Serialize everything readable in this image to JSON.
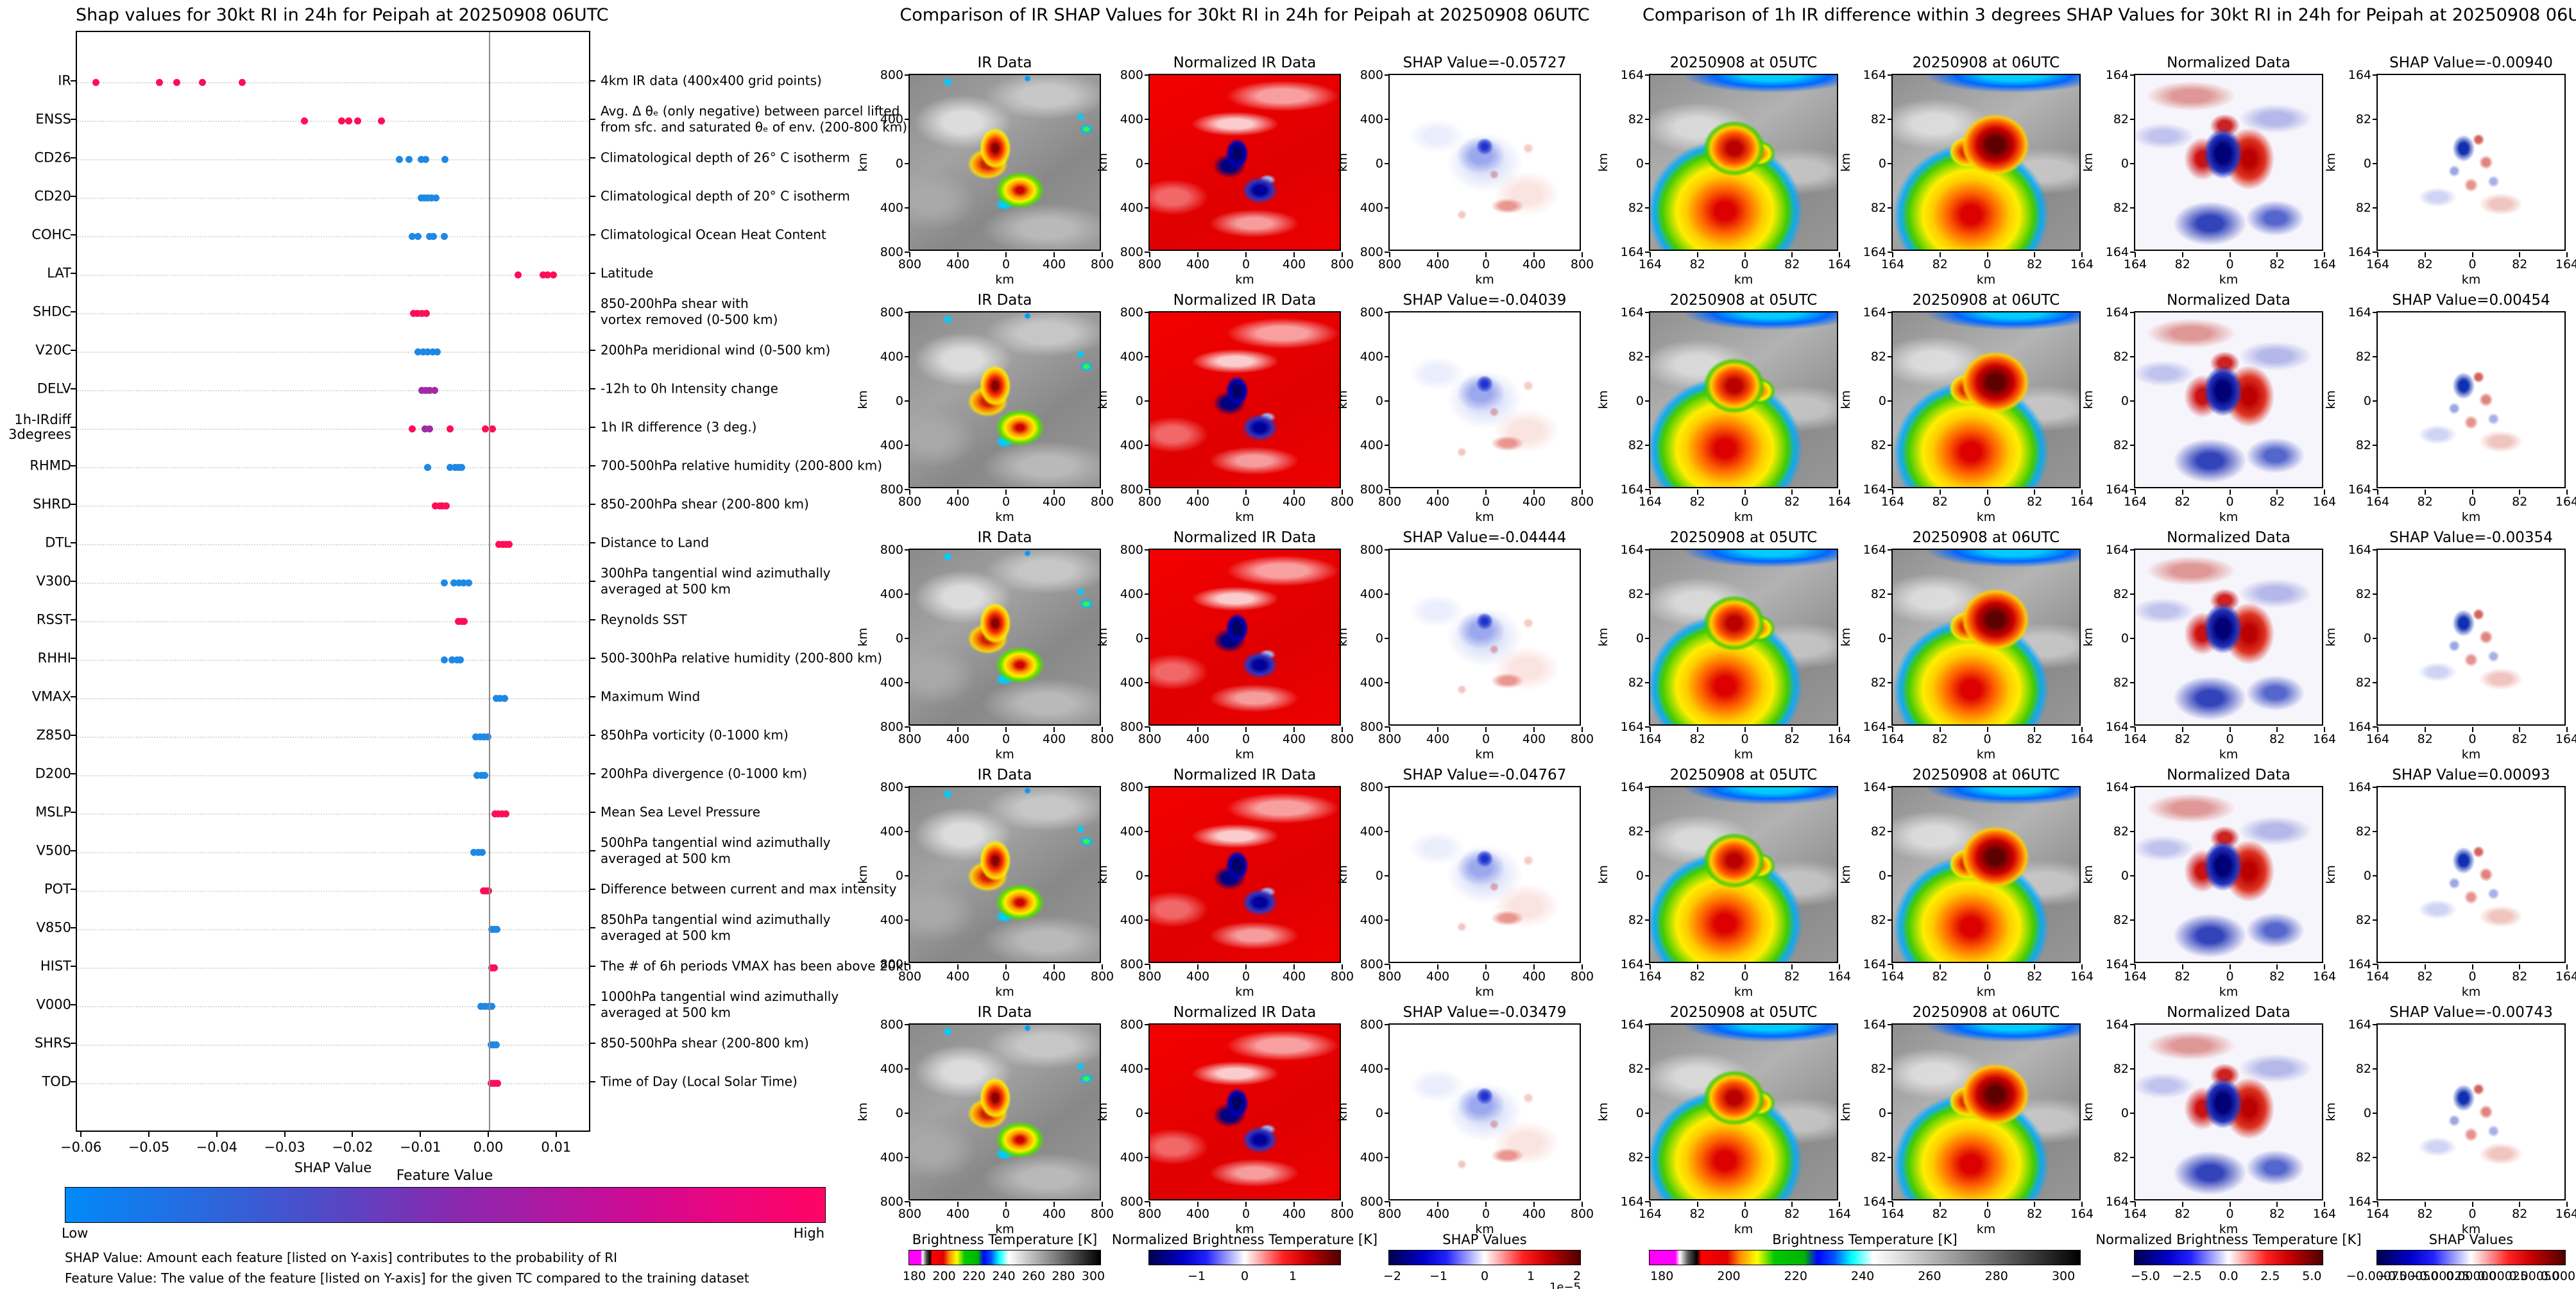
{
  "left_panel": {
    "title": "Shap values for 30kt RI in 24h for Peipah at 20250908 06UTC",
    "xlabel": "SHAP Value",
    "x_tick_labels": [
      "−0.06",
      "−0.05",
      "−0.04",
      "−0.03",
      "−0.02",
      "−0.01",
      "0.00",
      "0.01"
    ],
    "x_tick_values": [
      -0.06,
      -0.05,
      -0.04,
      -0.03,
      -0.02,
      -0.01,
      0.0,
      0.01
    ],
    "colors": {
      "hi": "#ff0d57",
      "lo": "#1e88e5",
      "mid": "#a12ba5"
    },
    "colorbar": {
      "title": "Feature Value",
      "low": "Low",
      "high": "High",
      "gradient_ends": [
        "#008af8",
        "#ff0463"
      ]
    },
    "footnote1": "SHAP Value: Amount each feature [listed on Y-axis] contributes to the probability of RI",
    "footnote2": "Feature Value: The value of the feature [listed on Y-axis] for the given TC compared to the training dataset",
    "features": [
      {
        "name": "IR",
        "desc": "4km IR data (400x400 grid points)",
        "c": "hi",
        "values": [
          -0.058,
          -0.0486,
          -0.0461,
          -0.0423,
          -0.0364
        ]
      },
      {
        "name": "ENSS",
        "desc": "Avg. Δ θₑ (only negative) between parcel lifted\nfrom sfc. and saturated θₑ of env. (200-800 km)",
        "c": "hi",
        "values": [
          -0.0273,
          -0.0218,
          -0.0207,
          -0.0194,
          -0.0159
        ]
      },
      {
        "name": "CD26",
        "desc": "Climatological depth of 26° C isotherm",
        "c": "lo",
        "values": [
          -0.0133,
          -0.0119,
          -0.0101,
          -0.0094,
          -0.0066
        ]
      },
      {
        "name": "CD20",
        "desc": "Climatological depth of 20° C isotherm",
        "c": "lo",
        "values": [
          -0.0101,
          -0.0096,
          -0.0091,
          -0.0086,
          -0.0079
        ]
      },
      {
        "name": "COHC",
        "desc": "Climatological Ocean Heat Content",
        "c": "lo",
        "values": [
          -0.0114,
          -0.0105,
          -0.0088,
          -0.0083,
          -0.0067
        ]
      },
      {
        "name": "LAT",
        "desc": "Latitude",
        "c": "hi",
        "values": [
          0.0042,
          0.0079,
          0.0086,
          0.0094
        ]
      },
      {
        "name": "SHDC",
        "desc": "850-200hPa shear with\nvortex removed (0-500 km)",
        "c": "hi",
        "values": [
          -0.0112,
          -0.0106,
          -0.01,
          -0.0093
        ]
      },
      {
        "name": "V20C",
        "desc": "200hPa meridional wind (0-500 km)",
        "c": "lo",
        "values": [
          -0.0105,
          -0.0098,
          -0.0091,
          -0.0084,
          -0.0077
        ]
      },
      {
        "name": "DELV",
        "desc": "-12h to 0h Intensity change",
        "c": "mid",
        "values": [
          -0.01,
          -0.0094,
          -0.0088,
          -0.0081
        ]
      },
      {
        "name": "1h-IRdiff\n3degrees",
        "desc": "1h IR difference (3 deg.)",
        "c": "hi",
        "values": [
          -0.0114,
          -0.0095,
          -0.0088,
          -0.0058,
          -0.0006,
          0.0004
        ],
        "pc": [
          "hi",
          "mid",
          "mid",
          "hi",
          "hi",
          "hi"
        ]
      },
      {
        "name": "RHMD",
        "desc": "700-500hPa relative humidity (200-800 km)",
        "c": "lo",
        "values": [
          -0.0091,
          -0.0058,
          -0.0051,
          -0.0046,
          -0.0041
        ]
      },
      {
        "name": "SHRD",
        "desc": "850-200hPa shear (200-800 km)",
        "c": "hi",
        "values": [
          -0.008,
          -0.0073,
          -0.0069,
          -0.0064
        ]
      },
      {
        "name": "DTL",
        "desc": "Distance to Land",
        "c": "hi",
        "values": [
          0.0014,
          0.0019,
          0.0024,
          0.0029
        ]
      },
      {
        "name": "V300",
        "desc": "300hPa tangential wind azimuthally\naveraged at 500 km",
        "c": "lo",
        "values": [
          -0.0067,
          -0.0052,
          -0.0045,
          -0.0038,
          -0.0031
        ]
      },
      {
        "name": "RSST",
        "desc": "Reynolds SST",
        "c": "hi",
        "values": [
          -0.0046,
          -0.0041,
          -0.0037
        ]
      },
      {
        "name": "RHHI",
        "desc": "500-300hPa relative humidity (200-800 km)",
        "c": "lo",
        "values": [
          -0.0067,
          -0.0055,
          -0.0048,
          -0.0043
        ]
      },
      {
        "name": "VMAX",
        "desc": "Maximum Wind",
        "c": "lo",
        "values": [
          0.001,
          0.0016,
          0.0022
        ]
      },
      {
        "name": "Z850",
        "desc": "850hPa vorticity (0-1000 km)",
        "c": "lo",
        "values": [
          -0.002,
          -0.0014,
          -0.0008,
          -0.0002
        ]
      },
      {
        "name": "D200",
        "desc": "200hPa divergence (0-1000 km)",
        "c": "lo",
        "values": [
          -0.0018,
          -0.0012,
          -0.0007
        ]
      },
      {
        "name": "MSLP",
        "desc": "Mean Sea Level Pressure",
        "c": "hi",
        "values": [
          0.0008,
          0.0013,
          0.0018,
          0.0024
        ]
      },
      {
        "name": "V500",
        "desc": "500hPa tangential wind azimuthally\naveraged at 500 km",
        "c": "lo",
        "values": [
          -0.0023,
          -0.0017,
          -0.0011
        ]
      },
      {
        "name": "POT",
        "desc": "Difference between current and max intensity",
        "c": "hi",
        "values": [
          -0.0009,
          -0.0005,
          -0.0001
        ]
      },
      {
        "name": "V850",
        "desc": "850hPa tangential wind azimuthally\naveraged at 500 km",
        "c": "lo",
        "values": [
          0.0003,
          0.0007,
          0.0011
        ]
      },
      {
        "name": "HIST",
        "desc": "The # of 6h periods VMAX has been above 20kt",
        "c": "hi",
        "values": [
          0.0003,
          0.0007
        ]
      },
      {
        "name": "V000",
        "desc": "1000hPa tangential wind azimuthally\naveraged at 500 km",
        "c": "lo",
        "values": [
          -0.0013,
          -0.0007,
          -0.0001,
          0.0003
        ]
      },
      {
        "name": "SHRS",
        "desc": "850-500hPa shear (200-800 km)",
        "c": "lo",
        "values": [
          0.0002,
          0.0006,
          0.001
        ]
      },
      {
        "name": "TOD",
        "desc": "Time of Day (Local Solar Time)",
        "c": "hi",
        "values": [
          0.0002,
          0.0007,
          0.0012
        ]
      }
    ]
  },
  "middle_panel": {
    "title": "Comparison of IR SHAP Values for 30kt RI in 24h for Peipah at 20250908 06UTC",
    "col_titles": [
      "IR Data",
      "Normalized IR Data"
    ],
    "rows": [
      {
        "shap_title": "SHAP Value=-0.05727"
      },
      {
        "shap_title": "SHAP Value=-0.04039"
      },
      {
        "shap_title": "SHAP Value=-0.04444"
      },
      {
        "shap_title": "SHAP Value=-0.04767"
      },
      {
        "shap_title": "SHAP Value=-0.03479"
      }
    ],
    "y_ticks": [
      "800",
      "400",
      "0",
      "400",
      "800"
    ],
    "x_ticks": [
      "800",
      "400",
      "0",
      "400",
      "800"
    ],
    "axis_unit": "km",
    "colorbars": [
      {
        "title": "Brightness Temperature [K]",
        "ticks": [
          "180",
          "200",
          "220",
          "240",
          "260",
          "280",
          "300"
        ]
      },
      {
        "title": "Normalized Brightness Temperature [K]",
        "ticks": [
          "−1",
          "0",
          "1"
        ]
      },
      {
        "title": "SHAP Values",
        "ticks": [
          "−2",
          "−1",
          "0",
          "1",
          "2"
        ],
        "exponent": "1e−5"
      }
    ]
  },
  "right_panel": {
    "title": "Comparison of 1h IR difference within 3 degrees SHAP Values for 30kt RI in 24h for Peipah at 20250908 06UTC",
    "col_titles": [
      "20250908 at 05UTC",
      "20250908 at 06UTC",
      "Normalized Data"
    ],
    "rows": [
      {
        "shap_title": "SHAP Value=-0.00940"
      },
      {
        "shap_title": "SHAP Value=0.00454"
      },
      {
        "shap_title": "SHAP Value=-0.00354"
      },
      {
        "shap_title": "SHAP Value=0.00093"
      },
      {
        "shap_title": "SHAP Value=-0.00743"
      }
    ],
    "y_ticks": [
      "164",
      "82",
      "0",
      "82",
      "164"
    ],
    "x_ticks": [
      "164",
      "82",
      "0",
      "82",
      "164"
    ],
    "axis_unit": "km",
    "colorbars": [
      {
        "title": "Brightness Temperature [K]",
        "ticks": [
          "180",
          "200",
          "220",
          "240",
          "260",
          "280",
          "300"
        ]
      },
      {
        "title": "Normalized Brightness Temperature [K]",
        "ticks": [
          "−5.0",
          "−2.5",
          "0.0",
          "2.5",
          "5.0"
        ]
      },
      {
        "title": "SHAP Values",
        "ticks": [
          "−0.00075",
          "−0.00050",
          "−0.00025",
          "0.00000",
          "0.00025",
          "0.00050",
          "0.00075"
        ]
      }
    ]
  },
  "chart_data": [
    {
      "type": "scatter",
      "title": "Shap values for 30kt RI in 24h for Peipah at 20250908 06UTC",
      "xlabel": "SHAP Value",
      "xlim": [
        -0.0608,
        0.015
      ],
      "x_ticks": [
        -0.06,
        -0.05,
        -0.04,
        -0.03,
        -0.02,
        -0.01,
        0.0,
        0.01
      ],
      "grid": "horizontal-dotted",
      "color_legend": {
        "title": "Feature Value",
        "low": "Low",
        "high": "High",
        "low_color": "#008af8",
        "high_color": "#ff0463"
      },
      "series": [
        {
          "name": "IR",
          "values": [
            -0.058,
            -0.0486,
            -0.0461,
            -0.0423,
            -0.0364
          ],
          "feature_value": "high"
        },
        {
          "name": "ENSS",
          "values": [
            -0.0273,
            -0.0218,
            -0.0207,
            -0.0194,
            -0.0159
          ],
          "feature_value": "high"
        },
        {
          "name": "CD26",
          "values": [
            -0.0133,
            -0.0119,
            -0.0101,
            -0.0094,
            -0.0066
          ],
          "feature_value": "low"
        },
        {
          "name": "CD20",
          "values": [
            -0.0101,
            -0.0096,
            -0.0091,
            -0.0086,
            -0.0079
          ],
          "feature_value": "low"
        },
        {
          "name": "COHC",
          "values": [
            -0.0114,
            -0.0105,
            -0.0088,
            -0.0083,
            -0.0067
          ],
          "feature_value": "low"
        },
        {
          "name": "LAT",
          "values": [
            0.0042,
            0.0079,
            0.0086,
            0.0094
          ],
          "feature_value": "high"
        },
        {
          "name": "SHDC",
          "values": [
            -0.0112,
            -0.0106,
            -0.01,
            -0.0093
          ],
          "feature_value": "high"
        },
        {
          "name": "V20C",
          "values": [
            -0.0105,
            -0.0098,
            -0.0091,
            -0.0084,
            -0.0077
          ],
          "feature_value": "low"
        },
        {
          "name": "DELV",
          "values": [
            -0.01,
            -0.0094,
            -0.0088,
            -0.0081
          ],
          "feature_value": "mid"
        },
        {
          "name": "1h-IRdiff 3degrees",
          "values": [
            -0.0114,
            -0.0095,
            -0.0088,
            -0.0058,
            -0.0006,
            0.0004
          ],
          "feature_value": "mixed"
        },
        {
          "name": "RHMD",
          "values": [
            -0.0091,
            -0.0058,
            -0.0051,
            -0.0046,
            -0.0041
          ],
          "feature_value": "low"
        },
        {
          "name": "SHRD",
          "values": [
            -0.008,
            -0.0073,
            -0.0069,
            -0.0064
          ],
          "feature_value": "high"
        },
        {
          "name": "DTL",
          "values": [
            0.0014,
            0.0019,
            0.0024,
            0.0029
          ],
          "feature_value": "high"
        },
        {
          "name": "V300",
          "values": [
            -0.0067,
            -0.0052,
            -0.0045,
            -0.0038,
            -0.0031
          ],
          "feature_value": "low"
        },
        {
          "name": "RSST",
          "values": [
            -0.0046,
            -0.0041,
            -0.0037
          ],
          "feature_value": "high"
        },
        {
          "name": "RHHI",
          "values": [
            -0.0067,
            -0.0055,
            -0.0048,
            -0.0043
          ],
          "feature_value": "low"
        },
        {
          "name": "VMAX",
          "values": [
            0.001,
            0.0016,
            0.0022
          ],
          "feature_value": "low"
        },
        {
          "name": "Z850",
          "values": [
            -0.002,
            -0.0014,
            -0.0008,
            -0.0002
          ],
          "feature_value": "low"
        },
        {
          "name": "D200",
          "values": [
            -0.0018,
            -0.0012,
            -0.0007
          ],
          "feature_value": "low"
        },
        {
          "name": "MSLP",
          "values": [
            0.0008,
            0.0013,
            0.0018,
            0.0024
          ],
          "feature_value": "high"
        },
        {
          "name": "V500",
          "values": [
            -0.0023,
            -0.0017,
            -0.0011
          ],
          "feature_value": "low"
        },
        {
          "name": "POT",
          "values": [
            -0.0009,
            -0.0005,
            -0.0001
          ],
          "feature_value": "high"
        },
        {
          "name": "V850",
          "values": [
            0.0003,
            0.0007,
            0.0011
          ],
          "feature_value": "low"
        },
        {
          "name": "HIST",
          "values": [
            0.0003,
            0.0007
          ],
          "feature_value": "high"
        },
        {
          "name": "V000",
          "values": [
            -0.0013,
            -0.0007,
            -0.0001,
            0.0003
          ],
          "feature_value": "low"
        },
        {
          "name": "SHRS",
          "values": [
            0.0002,
            0.0006,
            0.001
          ],
          "feature_value": "low"
        },
        {
          "name": "TOD",
          "values": [
            0.0002,
            0.0007,
            0.0012
          ],
          "feature_value": "high"
        }
      ]
    },
    {
      "type": "heatmap",
      "title": "Comparison of IR SHAP Values for 30kt RI in 24h for Peipah at 20250908 06UTC",
      "columns": [
        "IR Data",
        "Normalized IR Data",
        "SHAP Value"
      ],
      "row_shap_values": [
        -0.05727,
        -0.04039,
        -0.04444,
        -0.04767,
        -0.03479
      ],
      "axis_range_km": [
        -800,
        800
      ],
      "colorbar_ranges": {
        "brightness_temperature_K": [
          180,
          300
        ],
        "normalized": [
          -1,
          1
        ],
        "shap_values": [
          -2e-05,
          2e-05
        ]
      }
    },
    {
      "type": "heatmap",
      "title": "Comparison of 1h IR difference within 3 degrees SHAP Values for 30kt RI in 24h for Peipah at 20250908 06UTC",
      "columns": [
        "20250908 at 05UTC",
        "20250908 at 06UTC",
        "Normalized Data",
        "SHAP Value"
      ],
      "row_shap_values": [
        -0.0094,
        0.00454,
        -0.00354,
        0.00093,
        -0.00743
      ],
      "axis_range_km": [
        -164,
        164
      ],
      "colorbar_ranges": {
        "brightness_temperature_K": [
          180,
          300
        ],
        "normalized": [
          -5.0,
          5.0
        ],
        "shap_values": [
          -0.00075,
          0.00075
        ]
      }
    }
  ]
}
